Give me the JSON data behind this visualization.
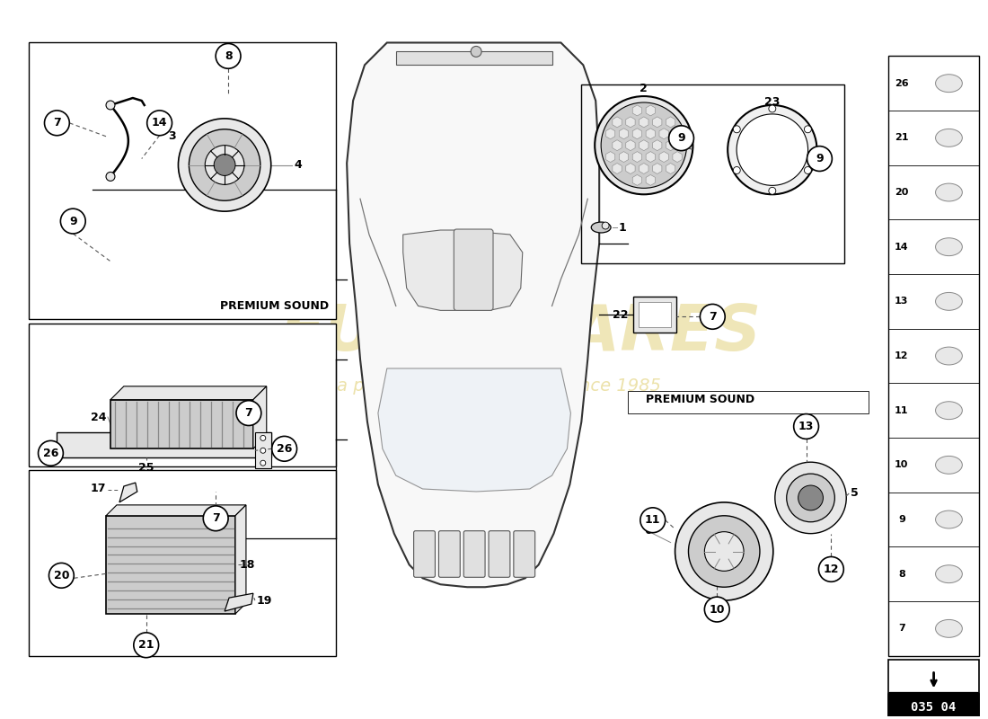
{
  "bg_color": "#ffffff",
  "line_color": "#000000",
  "gray_light": "#e8e8e8",
  "gray_mid": "#cccccc",
  "gray_dark": "#888888",
  "premium_sound": "PREMIUM SOUND",
  "page_code": "035 04",
  "watermark_color": "#c8a800",
  "watermark_alpha": 0.28,
  "sidebar_numbers": [
    "26",
    "21",
    "20",
    "14",
    "13",
    "12",
    "11",
    "10",
    "9",
    "8",
    "7"
  ],
  "car_body_color": "#f0f0f0",
  "car_line_color": "#444444"
}
